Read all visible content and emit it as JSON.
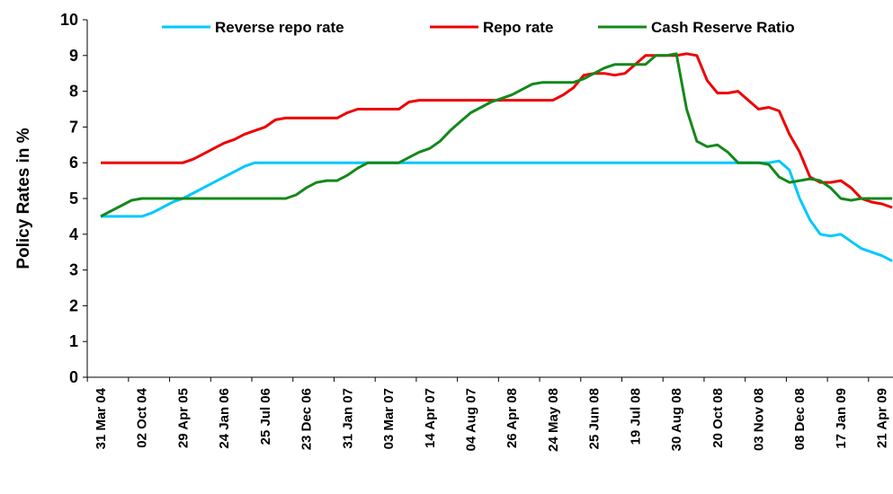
{
  "chart_data": {
    "type": "line",
    "y_label": "Policy Rates in %",
    "categories": [
      "31 Mar 04",
      null,
      null,
      null,
      "02 Oct 04",
      null,
      null,
      null,
      "29 Apr 05",
      null,
      null,
      null,
      "24 Jan 06",
      null,
      null,
      null,
      "25 Jul 06",
      null,
      null,
      null,
      "23 Dec 06",
      null,
      null,
      null,
      "31 Jan 07",
      null,
      null,
      null,
      "03 Mar 07",
      null,
      null,
      null,
      "14 Apr 07",
      null,
      null,
      null,
      "04 Aug 07",
      null,
      null,
      null,
      "26 Apr 08",
      null,
      null,
      null,
      "24 May 08",
      null,
      null,
      null,
      "25 Jun 08",
      null,
      null,
      null,
      "19 Jul 08",
      null,
      null,
      null,
      "30 Aug 08",
      null,
      null,
      null,
      "20 Oct 08",
      null,
      null,
      null,
      "03 Nov 08",
      null,
      null,
      null,
      "08 Dec 08",
      null,
      null,
      null,
      "17 Jan 09",
      null,
      null,
      null,
      "21 Apr 09",
      null
    ],
    "series": [
      {
        "name": "Reverse repo rate",
        "color": "#00c8ff",
        "values": [
          4.5,
          4.5,
          4.5,
          4.5,
          4.5,
          4.6,
          4.75,
          4.9,
          5.0,
          5.15,
          5.3,
          5.45,
          5.6,
          5.75,
          5.9,
          6,
          6,
          6,
          6,
          6,
          6,
          6,
          6,
          6,
          6,
          6,
          6,
          6,
          6,
          6,
          6,
          6,
          6,
          6,
          6,
          6,
          6,
          6,
          6,
          6,
          6,
          6,
          6,
          6,
          6,
          6,
          6,
          6,
          6,
          6,
          6,
          6,
          6,
          6,
          6,
          6,
          6,
          6,
          6,
          6,
          6,
          6,
          6,
          6,
          6,
          6,
          6.05,
          5.8,
          5.0,
          4.4,
          4.0,
          3.95,
          4.0,
          3.8,
          3.6,
          3.5,
          3.4,
          3.25
        ]
      },
      {
        "name": "Repo rate",
        "color": "#ee0000",
        "values": [
          6,
          6,
          6,
          6,
          6,
          6,
          6,
          6,
          6,
          6.1,
          6.25,
          6.4,
          6.55,
          6.65,
          6.8,
          6.9,
          7.0,
          7.2,
          7.25,
          7.25,
          7.25,
          7.25,
          7.25,
          7.25,
          7.4,
          7.5,
          7.5,
          7.5,
          7.5,
          7.5,
          7.7,
          7.75,
          7.75,
          7.75,
          7.75,
          7.75,
          7.75,
          7.75,
          7.75,
          7.75,
          7.75,
          7.75,
          7.75,
          7.75,
          7.75,
          7.9,
          8.1,
          8.45,
          8.5,
          8.5,
          8.45,
          8.5,
          8.75,
          9.0,
          9.0,
          9.0,
          9.0,
          9.05,
          9.0,
          8.3,
          7.95,
          7.95,
          8.0,
          7.75,
          7.5,
          7.55,
          7.45,
          6.8,
          6.3,
          5.6,
          5.45,
          5.45,
          5.5,
          5.3,
          5.0,
          4.9,
          4.85,
          4.75
        ]
      },
      {
        "name": "Cash Reserve Ratio",
        "color": "#14881a",
        "values": [
          4.5,
          4.65,
          4.8,
          4.95,
          5.0,
          5.0,
          5.0,
          5.0,
          5.0,
          5.0,
          5.0,
          5.0,
          5.0,
          5.0,
          5.0,
          5.0,
          5.0,
          5.0,
          5.0,
          5.1,
          5.3,
          5.45,
          5.5,
          5.5,
          5.65,
          5.85,
          6.0,
          6.0,
          6.0,
          6.0,
          6.15,
          6.3,
          6.4,
          6.6,
          6.9,
          7.15,
          7.4,
          7.55,
          7.7,
          7.8,
          7.9,
          8.05,
          8.2,
          8.25,
          8.25,
          8.25,
          8.25,
          8.35,
          8.5,
          8.65,
          8.75,
          8.75,
          8.75,
          8.75,
          9.0,
          9.0,
          9.05,
          7.5,
          6.6,
          6.45,
          6.5,
          6.3,
          6.0,
          6.0,
          6.0,
          5.95,
          5.6,
          5.45,
          5.5,
          5.55,
          5.5,
          5.3,
          5.0,
          4.95,
          5.0,
          5.0,
          5.0,
          5.0
        ]
      }
    ],
    "ylim": [
      0,
      10
    ],
    "yticks": [
      0,
      1,
      2,
      3,
      4,
      5,
      6,
      7,
      8,
      9,
      10
    ],
    "grid": false,
    "legend": "top"
  }
}
